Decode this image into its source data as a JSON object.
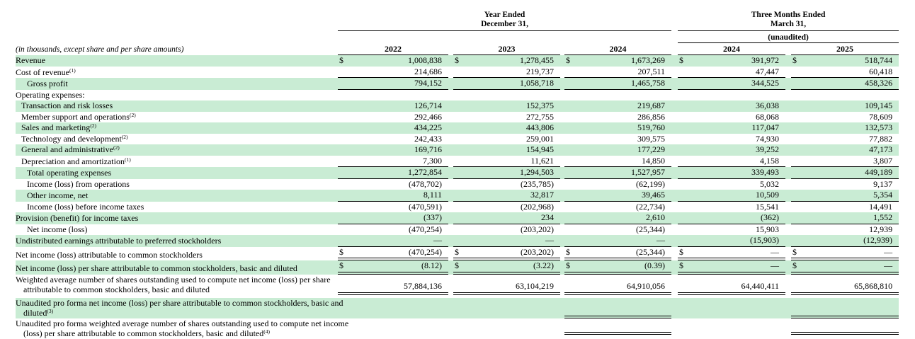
{
  "colors": {
    "row_highlight": "#c9ecd4",
    "rule": "#000000"
  },
  "header": {
    "annual_period_line1": "Year Ended",
    "annual_period_line2": "December 31,",
    "interim_period_line1": "Three Months Ended",
    "interim_period_line2": "March 31,",
    "unaudited_label": "(unaudited)",
    "units_note": "(in thousands, except share and per share amounts)",
    "annual_years": [
      "2022",
      "2023",
      "2024"
    ],
    "interim_years": [
      "2024",
      "2025"
    ]
  },
  "rows": [
    {
      "label": "Revenue",
      "green": true,
      "dollar": true,
      "border": "none",
      "values": [
        "1,008,838",
        "1,278,455",
        "1,673,269",
        "391,972",
        "518,744"
      ]
    },
    {
      "label": "Cost of revenue",
      "sup": "(1)",
      "green": false,
      "border": "single",
      "values": [
        "214,686",
        "219,737",
        "207,511",
        "47,447",
        "60,418"
      ]
    },
    {
      "label": "Gross profit",
      "indent": 2,
      "green": true,
      "border": "single",
      "values": [
        "794,152",
        "1,058,718",
        "1,465,758",
        "344,525",
        "458,326"
      ]
    },
    {
      "label": "Operating expenses:",
      "green": false,
      "border": "none",
      "values": null
    },
    {
      "label": "Transaction and risk losses",
      "indent": 1,
      "green": true,
      "border": "none",
      "values": [
        "126,714",
        "152,375",
        "219,687",
        "36,038",
        "109,145"
      ]
    },
    {
      "label": "Member support and operations",
      "sup": "(2)",
      "indent": 1,
      "green": false,
      "border": "none",
      "values": [
        "292,466",
        "272,755",
        "286,856",
        "68,068",
        "78,609"
      ]
    },
    {
      "label": "Sales and marketing",
      "sup": "(2)",
      "indent": 1,
      "green": true,
      "border": "none",
      "values": [
        "434,225",
        "443,806",
        "519,760",
        "117,047",
        "132,573"
      ]
    },
    {
      "label": "Technology and development",
      "sup": "(2)",
      "indent": 1,
      "green": false,
      "border": "none",
      "values": [
        "242,433",
        "259,001",
        "309,575",
        "74,930",
        "77,882"
      ]
    },
    {
      "label": "General and administrative",
      "sup": "(2)",
      "indent": 1,
      "green": true,
      "border": "none",
      "values": [
        "169,716",
        "154,945",
        "177,229",
        "39,252",
        "47,173"
      ]
    },
    {
      "label": "Depreciation and amortization",
      "sup": "(1)",
      "indent": 1,
      "green": false,
      "border": "single",
      "values": [
        "7,300",
        "11,621",
        "14,850",
        "4,158",
        "3,807"
      ]
    },
    {
      "label": "Total operating expenses",
      "indent": 2,
      "green": true,
      "border": "single",
      "values": [
        "1,272,854",
        "1,294,503",
        "1,527,957",
        "339,493",
        "449,189"
      ]
    },
    {
      "label": "Income (loss) from operations",
      "indent": 2,
      "green": false,
      "border": "none",
      "values": [
        "(478,702)",
        "(235,785)",
        "(62,199)",
        "5,032",
        "9,137"
      ]
    },
    {
      "label": "Other income, net",
      "indent": 2,
      "green": true,
      "border": "single",
      "values": [
        "8,111",
        "32,817",
        "39,465",
        "10,509",
        "5,354"
      ]
    },
    {
      "label": "Income (loss) before income taxes",
      "indent": 2,
      "green": false,
      "border": "none",
      "values": [
        "(470,591)",
        "(202,968)",
        "(22,734)",
        "15,541",
        "14,491"
      ]
    },
    {
      "label": "Provision (benefit) for income taxes",
      "green": true,
      "border": "single",
      "values": [
        "(337)",
        "234",
        "2,610",
        "(362)",
        "1,552"
      ]
    },
    {
      "label": "Net income (loss)",
      "indent": 2,
      "green": false,
      "border": "none",
      "values": [
        "(470,254)",
        "(203,202)",
        "(25,344)",
        "15,903",
        "12,939"
      ]
    },
    {
      "label": "Undistributed earnings attributable to preferred stockholders",
      "green": true,
      "border": "single",
      "values": [
        "—",
        "—",
        "—",
        "(15,903)",
        "(12,939)"
      ]
    },
    {
      "label": "Net income (loss) attributable to common stockholders",
      "green": false,
      "dollar": true,
      "border": "double",
      "values": [
        "(470,254)",
        "(203,202)",
        "(25,344)",
        "—",
        "—"
      ]
    },
    {
      "label": "Net income (loss) per share attributable to common stockholders, basic and diluted",
      "green": true,
      "dollar": true,
      "border": "double",
      "values": [
        "(8.12)",
        "(3.22)",
        "(0.39)",
        "—",
        "—"
      ]
    },
    {
      "label": "Weighted average number of shares outstanding used to compute net income (loss) per share",
      "label2": "attributable to common stockholders, basic and diluted",
      "green": false,
      "border": "double",
      "values": [
        "57,884,136",
        "63,104,219",
        "64,910,056",
        "64,440,411",
        "65,868,810"
      ]
    },
    {
      "label": "Unaudited pro forma net income (loss) per share attributable to common stockholders, basic and",
      "label2": "diluted",
      "sup": "(3)",
      "green": true,
      "border": "double-partial",
      "values": null
    },
    {
      "label": "Unaudited pro forma weighted average number of shares outstanding used to compute net income",
      "label2": "(loss) per share attributable to common stockholders, basic and diluted",
      "sup": "(4)",
      "green": false,
      "border": "double-partial",
      "values": null
    }
  ]
}
